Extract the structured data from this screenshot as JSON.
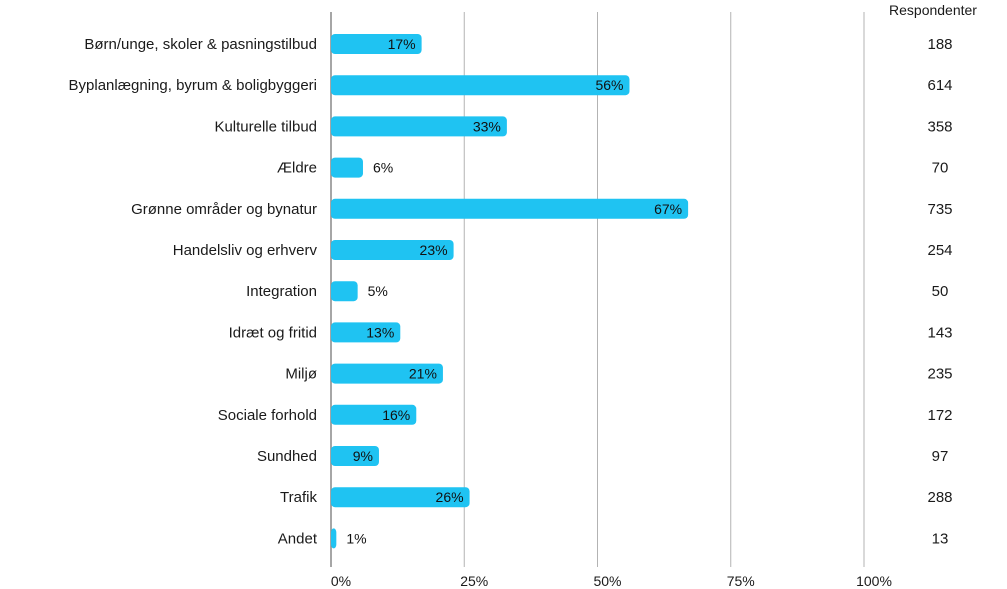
{
  "chart_data": {
    "type": "bar",
    "orientation": "horizontal",
    "categories": [
      "Børn/unge, skoler & pasningstilbud",
      "Byplanlægning, byrum & boligbyggeri",
      "Kulturelle tilbud",
      "Ældre",
      "Grønne områder og bynatur",
      "Handelsliv og erhverv",
      "Integration",
      "Idræt og fritid",
      "Miljø",
      "Sociale forhold",
      "Sundhed",
      "Trafik",
      "Andet"
    ],
    "values": [
      17,
      56,
      33,
      6,
      67,
      23,
      5,
      13,
      21,
      16,
      9,
      26,
      1
    ],
    "value_labels": [
      "17%",
      "56%",
      "33%",
      "6%",
      "67%",
      "23%",
      "5%",
      "13%",
      "21%",
      "16%",
      "9%",
      "26%",
      "1%"
    ],
    "respondents_header": "Respondenter",
    "respondents": [
      "188",
      "614",
      "358",
      "70",
      "735",
      "254",
      "50",
      "143",
      "235",
      "172",
      "97",
      "288",
      "13"
    ],
    "xlim": [
      0,
      100
    ],
    "xticks": [
      0,
      25,
      50,
      75,
      100
    ],
    "xtick_labels": [
      "0%",
      "25%",
      "50%",
      "75%",
      "100%"
    ],
    "grid": true,
    "colors": {
      "bar": "#1fc3f2",
      "grid": "#b3b3b3",
      "axis": "#888888"
    }
  }
}
